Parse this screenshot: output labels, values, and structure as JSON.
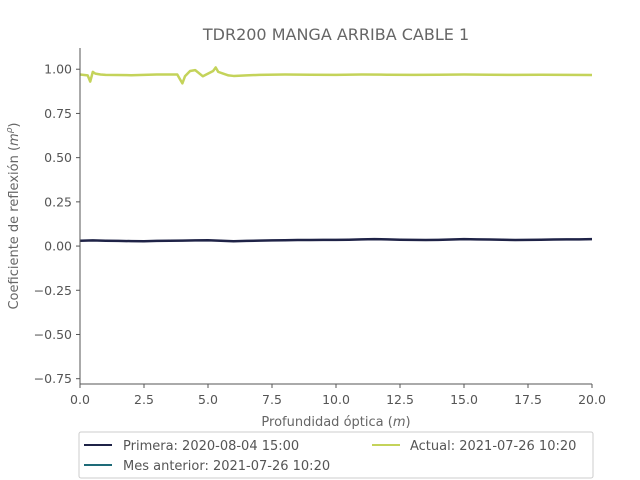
{
  "chart_data": {
    "type": "line",
    "title": "TDR200 MANGA ARRIBA CABLE 1",
    "xlabel": "Profundidad óptica",
    "xlabel_unit": "m",
    "ylabel": "Coeficiente de reflexión",
    "ylabel_unit": "m",
    "ylabel_unit_exp": "ρ",
    "xlim": [
      0,
      20
    ],
    "ylim": [
      -0.78,
      1.12
    ],
    "x_ticks": [
      0.0,
      2.5,
      5.0,
      7.5,
      10.0,
      12.5,
      15.0,
      17.5,
      20.0
    ],
    "x_tick_labels": [
      "0.0",
      "2.5",
      "5.0",
      "7.5",
      "10.0",
      "12.5",
      "15.0",
      "17.5",
      "20.0"
    ],
    "y_ticks": [
      1.0,
      0.75,
      0.5,
      0.25,
      0.0,
      -0.25,
      -0.5,
      -0.75
    ],
    "y_tick_labels": [
      "1.00",
      "0.75",
      "0.50",
      "0.25",
      "0.00",
      "−0.25",
      "−0.50",
      "−0.75"
    ],
    "grid": false,
    "legend_placement": "bottom",
    "series": [
      {
        "name": "Primera: 2020-08-04 15:00",
        "color": "#1f2347",
        "x": [
          0,
          0.5,
          1,
          1.5,
          2,
          2.5,
          3,
          3.5,
          4,
          4.5,
          5,
          5.5,
          6,
          6.5,
          7,
          7.5,
          8,
          8.5,
          9,
          9.5,
          10,
          10.5,
          11,
          11.5,
          12,
          12.5,
          13,
          13.5,
          14,
          14.5,
          15,
          15.5,
          16,
          16.5,
          17,
          17.5,
          18,
          18.5,
          19,
          19.5,
          20
        ],
        "y": [
          0.03,
          0.032,
          0.03,
          0.029,
          0.028,
          0.027,
          0.029,
          0.03,
          0.031,
          0.032,
          0.033,
          0.03,
          0.027,
          0.029,
          0.031,
          0.032,
          0.033,
          0.034,
          0.034,
          0.035,
          0.035,
          0.036,
          0.038,
          0.039,
          0.038,
          0.036,
          0.035,
          0.034,
          0.035,
          0.037,
          0.039,
          0.038,
          0.037,
          0.036,
          0.034,
          0.035,
          0.036,
          0.037,
          0.038,
          0.038,
          0.039
        ]
      },
      {
        "name": "Mes anterior: 2021-07-26 10:20",
        "color": "#1e6b78",
        "x": [],
        "y": []
      },
      {
        "name": "Actual: 2021-07-26 10:20",
        "color": "#c4d35a",
        "x": [
          0,
          0.3,
          0.4,
          0.5,
          0.6,
          0.8,
          1,
          2,
          3,
          3.8,
          3.9,
          4.0,
          4.1,
          4.3,
          4.5,
          4.8,
          5.0,
          5.2,
          5.3,
          5.4,
          5.6,
          5.8,
          6,
          6.5,
          7,
          8,
          9,
          10,
          11,
          12,
          13,
          14,
          15,
          16,
          17,
          18,
          19,
          20
        ],
        "y": [
          0.97,
          0.965,
          0.93,
          0.985,
          0.975,
          0.97,
          0.968,
          0.966,
          0.97,
          0.97,
          0.945,
          0.92,
          0.96,
          0.99,
          0.995,
          0.96,
          0.975,
          0.99,
          1.01,
          0.985,
          0.975,
          0.965,
          0.962,
          0.965,
          0.968,
          0.97,
          0.969,
          0.968,
          0.97,
          0.969,
          0.968,
          0.969,
          0.97,
          0.969,
          0.968,
          0.969,
          0.968,
          0.967
        ]
      }
    ]
  }
}
